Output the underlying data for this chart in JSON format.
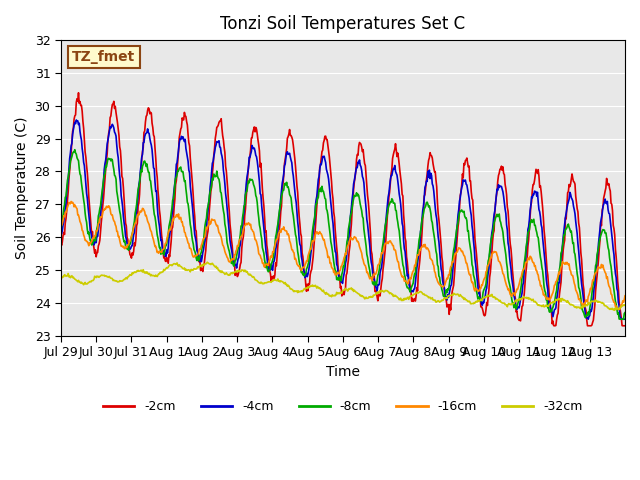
{
  "title": "Tonzi Soil Temperatures Set C",
  "xlabel": "Time",
  "ylabel": "Soil Temperature (C)",
  "ylim": [
    23.0,
    32.0
  ],
  "yticks": [
    23.0,
    24.0,
    25.0,
    26.0,
    27.0,
    28.0,
    29.0,
    30.0,
    31.0,
    32.0
  ],
  "xtick_labels": [
    "Jul 29",
    "Jul 30",
    "Jul 31",
    "Aug 1",
    "Aug 2",
    "Aug 3",
    "Aug 4",
    "Aug 5",
    "Aug 6",
    "Aug 7",
    "Aug 8",
    "Aug 9",
    "Aug 10",
    "Aug 11",
    "Aug 12",
    "Aug 13"
  ],
  "annotation_text": "TZ_fmet",
  "annotation_color": "#8B4513",
  "annotation_bg": "#FFFACD",
  "annotation_border": "#8B4513",
  "bg_color": "#E8E8E8",
  "legend_colors": [
    "#DD0000",
    "#0000CC",
    "#00AA00",
    "#FF8800",
    "#CCCC00"
  ],
  "legend_labels": [
    "-2cm",
    "-4cm",
    "-8cm",
    "-16cm",
    "-32cm"
  ],
  "n_days": 16,
  "pts_per_day": 48
}
